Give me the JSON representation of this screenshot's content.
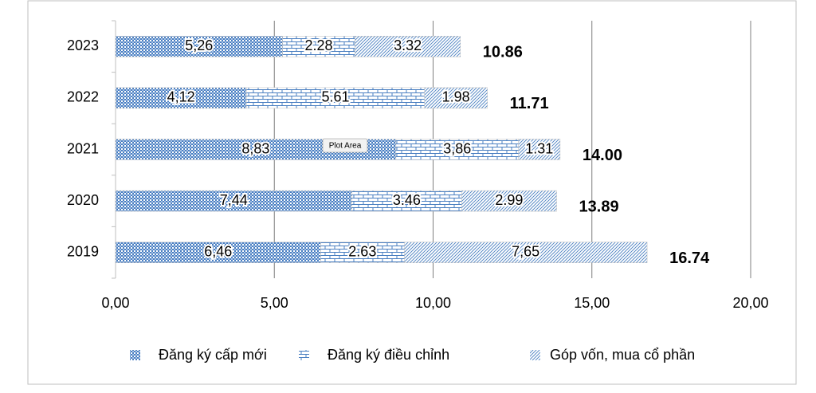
{
  "chart_data": {
    "type": "stacked-bar-horizontal",
    "categories": [
      "2023",
      "2022",
      "2021",
      "2020",
      "2019"
    ],
    "series": [
      {
        "name": "Đăng ký cấp mới",
        "color": "#4a7fc1",
        "values": [
          5.26,
          4.12,
          8.83,
          7.44,
          6.46
        ],
        "value_labels": [
          "5,26",
          "4,12",
          "8,83",
          "7,44",
          "6,46"
        ]
      },
      {
        "name": "Đăng ký điều chỉnh",
        "color": "#4a7fc1",
        "values": [
          2.28,
          5.61,
          3.86,
          3.46,
          2.63
        ],
        "value_labels": [
          "2.28",
          "5.61",
          "3,86",
          "3.46",
          "2.63"
        ]
      },
      {
        "name": "Góp vốn, mua cổ phần",
        "color": "#4a7fc1",
        "values": [
          3.32,
          1.98,
          1.31,
          2.99,
          7.65
        ],
        "value_labels": [
          "3.32",
          "1.98",
          "1.31",
          "2.99",
          "7,65"
        ]
      }
    ],
    "totals": [
      10.86,
      11.71,
      14.0,
      13.89,
      16.74
    ],
    "total_labels": [
      "10.86",
      "11.71",
      "14.00",
      "13.89",
      "16.74"
    ],
    "xlim": [
      0,
      20
    ],
    "xticks": [
      {
        "value": 0,
        "label": "0,00"
      },
      {
        "value": 5,
        "label": "5,00"
      },
      {
        "value": 10,
        "label": "10,00"
      },
      {
        "value": 15,
        "label": "15,00"
      },
      {
        "value": 20,
        "label": "20,00"
      }
    ],
    "grid": true,
    "legend": "bottom",
    "tooltip": "Plot Area"
  }
}
